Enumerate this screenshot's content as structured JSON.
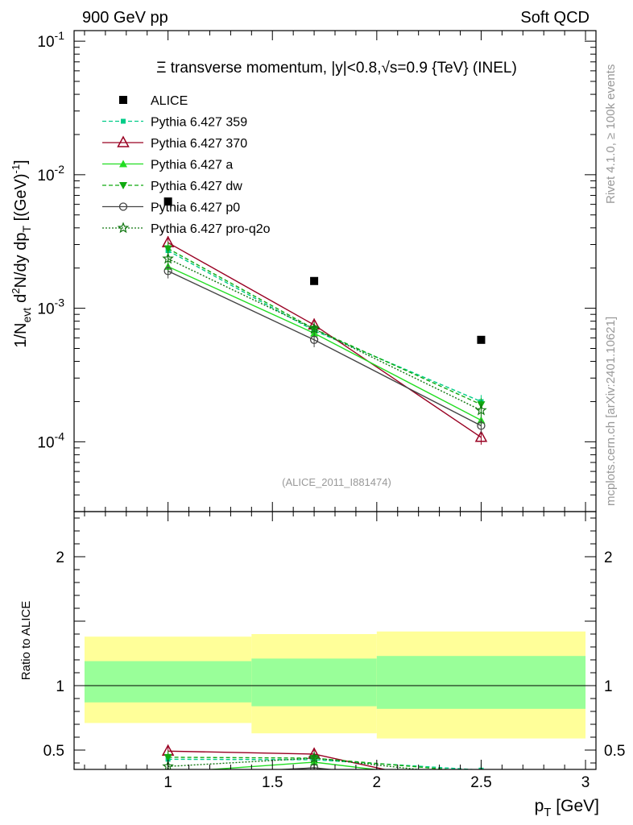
{
  "header": {
    "left": "900 GeV pp",
    "right": "Soft QCD"
  },
  "side_labels": {
    "rivet": "Rivet 4.1.0, ≥ 100k events",
    "mcplots": "mcplots.cern.ch [arXiv:2401.10621]"
  },
  "chart_data": {
    "type": "line",
    "title": "Ξ transverse momentum, |y|<0.8,√s=0.9 {TeV} (INEL)",
    "analysis_label": "(ALICE_2011_I881474)",
    "xlabel": "p_T [GeV]",
    "ylabel": "1/N_evt d²N/dy dp_T [(GeV)⁻¹]",
    "ratio_ylabel": "Ratio to ALICE",
    "xlim": [
      0.55,
      3.05
    ],
    "ylim": [
      3e-05,
      0.12
    ],
    "yscale": "log",
    "ratio_ylim": [
      0.35,
      2.35
    ],
    "x_ticks": [
      1,
      1.5,
      2,
      2.5,
      3
    ],
    "x_tick_labels": [
      "1",
      "1.5",
      "2",
      "2.5",
      "3"
    ],
    "y_ticks_main": [
      {
        "mantissa": "10",
        "exponent": "-4",
        "value": 0.0001
      },
      {
        "mantissa": "10",
        "exponent": "-3",
        "value": 0.001
      },
      {
        "mantissa": "10",
        "exponent": "-2",
        "value": 0.01
      },
      {
        "mantissa": "10",
        "exponent": "-1",
        "value": 0.1
      }
    ],
    "ratio_ticks": [
      {
        "label": "0.5",
        "value": 0.5
      },
      {
        "label": "1",
        "value": 1
      },
      {
        "label": "2",
        "value": 2
      }
    ],
    "reference": {
      "name": "ALICE",
      "x": [
        1.0,
        1.7,
        2.5
      ],
      "y": [
        0.0063,
        0.0016,
        0.00058
      ],
      "bins": [
        [
          0.6,
          1.4
        ],
        [
          1.4,
          2.0
        ],
        [
          2.0,
          3.0
        ]
      ],
      "band_stat": [
        [
          0.87,
          1.19
        ],
        [
          0.84,
          1.21
        ],
        [
          0.82,
          1.23
        ]
      ],
      "band_total": [
        [
          0.71,
          1.38
        ],
        [
          0.63,
          1.4
        ],
        [
          0.59,
          1.42
        ]
      ]
    },
    "series": [
      {
        "name": "Pythia 6.427 359",
        "x": [
          1.0,
          1.7,
          2.5
        ],
        "y": [
          0.0027,
          0.00068,
          0.0002
        ],
        "color": "#00cc88",
        "dash": "5,3",
        "marker": "square-small"
      },
      {
        "name": "Pythia 6.427 370",
        "x": [
          1.0,
          1.7,
          2.5
        ],
        "y": [
          0.0031,
          0.00075,
          0.000108
        ],
        "color": "#990022",
        "dash": "",
        "marker": "triangle-open"
      },
      {
        "name": "Pythia 6.427 a",
        "x": [
          1.0,
          1.7,
          2.5
        ],
        "y": [
          0.00205,
          0.00065,
          0.000145
        ],
        "color": "#22dd22",
        "dash": "",
        "marker": "triangle-filled"
      },
      {
        "name": "Pythia 6.427 dw",
        "x": [
          1.0,
          1.7,
          2.5
        ],
        "y": [
          0.0028,
          0.0007,
          0.00019
        ],
        "color": "#11aa11",
        "dash": "5,3",
        "marker": "triangle-down"
      },
      {
        "name": "Pythia 6.427 p0",
        "x": [
          1.0,
          1.7,
          2.5
        ],
        "y": [
          0.0019,
          0.00058,
          0.000132
        ],
        "color": "#444444",
        "dash": "",
        "marker": "circle-open"
      },
      {
        "name": "Pythia 6.427 pro-q2o",
        "x": [
          1.0,
          1.7,
          2.5
        ],
        "y": [
          0.00235,
          0.0007,
          0.000172
        ],
        "color": "#117711",
        "dash": "2,2",
        "marker": "star-open"
      }
    ]
  }
}
